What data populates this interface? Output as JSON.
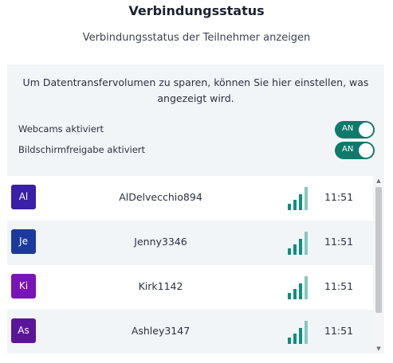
{
  "header": {
    "title": "Verbindungsstatus",
    "subtitle": "Verbindungsstatus der Teilnehmer anzeigen"
  },
  "settings": {
    "info": "Um Datentransfervolumen zu sparen, können Sie hier einstellen, was angezeigt wird.",
    "webcams": {
      "label": "Webcams aktiviert",
      "toggle_label": "AN"
    },
    "screenshare": {
      "label": "Bildschirmfreigabe aktiviert",
      "toggle_label": "AN"
    }
  },
  "users": [
    {
      "initials": "Al",
      "name": "AlDelvecchio894",
      "time": "11:51",
      "avatar_color": "#3a1fa8",
      "row_bg": "#ffffff"
    },
    {
      "initials": "Je",
      "name": "Jenny3346",
      "time": "11:51",
      "avatar_color": "#1c3a9e",
      "row_bg": "#f2f5f8"
    },
    {
      "initials": "Ki",
      "name": "Kirk1142",
      "time": "11:51",
      "avatar_color": "#7a14b8",
      "row_bg": "#ffffff"
    },
    {
      "initials": "As",
      "name": "Ashley3147",
      "time": "11:51",
      "avatar_color": "#5a159a",
      "row_bg": "#f2f5f8"
    }
  ],
  "colors": {
    "toggle_on": "#0f7a6c",
    "signal_strong": "#0f8f7e",
    "signal_weak": "#82c9bd"
  },
  "icons": {
    "signal": "signal-strength-icon",
    "scroll_up": "scroll-up-arrow-icon",
    "scroll_down": "scroll-down-arrow-icon"
  }
}
